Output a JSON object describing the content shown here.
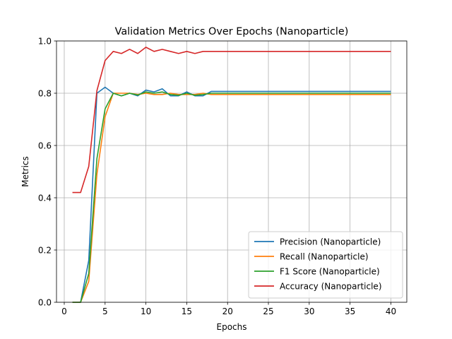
{
  "chart_data": {
    "type": "line",
    "title": "Validation Metrics Over Epochs (Nanoparticle)",
    "xlabel": "Epochs",
    "ylabel": "Metrics",
    "xlim": [
      -0.95,
      41.95
    ],
    "ylim": [
      0.0,
      1.0
    ],
    "xticks": [
      0,
      5,
      10,
      15,
      20,
      25,
      30,
      35,
      40
    ],
    "xtick_labels": [
      "0",
      "5",
      "10",
      "15",
      "20",
      "25",
      "30",
      "35",
      "40"
    ],
    "yticks": [
      0.0,
      0.2,
      0.4,
      0.6,
      0.8,
      1.0
    ],
    "ytick_labels": [
      "0.0",
      "0.2",
      "0.4",
      "0.6",
      "0.8",
      "1.0"
    ],
    "grid": true,
    "legend_position": "lower-right",
    "x": [
      1,
      2,
      3,
      4,
      5,
      6,
      7,
      8,
      9,
      10,
      11,
      12,
      13,
      14,
      15,
      16,
      17,
      18,
      19,
      20,
      21,
      22,
      23,
      24,
      25,
      26,
      27,
      28,
      29,
      30,
      31,
      32,
      33,
      34,
      35,
      36,
      37,
      38,
      39,
      40
    ],
    "series": [
      {
        "name": "Precision (Nanoparticle)",
        "color": "#1f77b4",
        "values": [
          0.0,
          0.0,
          0.16,
          0.8,
          0.823,
          0.8,
          0.79,
          0.8,
          0.79,
          0.812,
          0.805,
          0.817,
          0.79,
          0.79,
          0.805,
          0.79,
          0.79,
          0.807,
          0.807,
          0.807,
          0.807,
          0.807,
          0.807,
          0.807,
          0.807,
          0.807,
          0.807,
          0.807,
          0.807,
          0.807,
          0.807,
          0.807,
          0.807,
          0.807,
          0.807,
          0.807,
          0.807,
          0.807,
          0.807,
          0.807
        ]
      },
      {
        "name": "Recall (Nanoparticle)",
        "color": "#ff7f0e",
        "values": [
          0.0,
          0.0,
          0.08,
          0.49,
          0.71,
          0.8,
          0.8,
          0.8,
          0.795,
          0.8,
          0.795,
          0.795,
          0.8,
          0.795,
          0.795,
          0.795,
          0.8,
          0.795,
          0.795,
          0.795,
          0.795,
          0.795,
          0.795,
          0.795,
          0.795,
          0.795,
          0.795,
          0.795,
          0.795,
          0.795,
          0.795,
          0.795,
          0.795,
          0.795,
          0.795,
          0.795,
          0.795,
          0.795,
          0.795,
          0.795
        ]
      },
      {
        "name": "F1 Score (Nanoparticle)",
        "color": "#2ca02c",
        "values": [
          0.0,
          0.0,
          0.11,
          0.55,
          0.74,
          0.8,
          0.79,
          0.8,
          0.793,
          0.805,
          0.8,
          0.805,
          0.795,
          0.792,
          0.8,
          0.792,
          0.795,
          0.8,
          0.8,
          0.8,
          0.8,
          0.8,
          0.8,
          0.8,
          0.8,
          0.8,
          0.8,
          0.8,
          0.8,
          0.8,
          0.8,
          0.8,
          0.8,
          0.8,
          0.8,
          0.8,
          0.8,
          0.8,
          0.8,
          0.8
        ]
      },
      {
        "name": "Accuracy (Nanoparticle)",
        "color": "#d62728",
        "values": [
          0.42,
          0.42,
          0.52,
          0.81,
          0.925,
          0.96,
          0.952,
          0.968,
          0.952,
          0.976,
          0.96,
          0.968,
          0.96,
          0.952,
          0.96,
          0.952,
          0.96,
          0.96,
          0.96,
          0.96,
          0.96,
          0.96,
          0.96,
          0.96,
          0.96,
          0.96,
          0.96,
          0.96,
          0.96,
          0.96,
          0.96,
          0.96,
          0.96,
          0.96,
          0.96,
          0.96,
          0.96,
          0.96,
          0.96,
          0.96
        ]
      }
    ]
  }
}
